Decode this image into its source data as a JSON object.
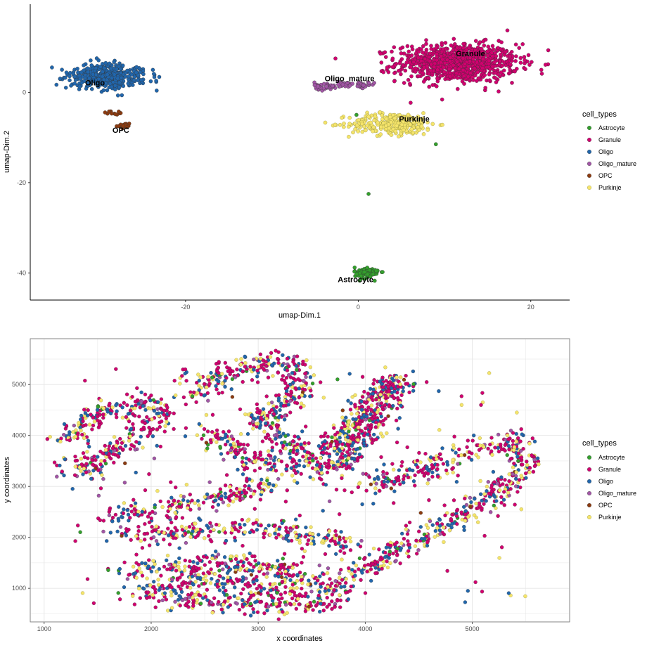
{
  "colors": {
    "Astrocyte": "#33a02c",
    "Granule": "#d1006f",
    "Oligo": "#2166ac",
    "Oligo_mature": "#a256a6",
    "OPC": "#8c3b10",
    "Purkinje": "#f5e46b",
    "grid": "#e5e5e5",
    "axis": "#000000"
  },
  "chart_data": [
    {
      "type": "scatter",
      "xlabel": "umap-Dim.1",
      "ylabel": "umap-Dim.2",
      "xlim": [
        -38,
        24.5
      ],
      "ylim": [
        -46,
        19.5
      ],
      "x_ticks": [
        -20,
        0,
        20
      ],
      "y_ticks": [
        0,
        -20,
        -40
      ],
      "grid": false,
      "legend_title": "cell_types",
      "legend_position": "right",
      "legend_entries": [
        "Astrocyte",
        "Granule",
        "Oligo",
        "Oligo_mature",
        "OPC",
        "Purkinje"
      ],
      "cluster_labels": [
        {
          "text": "Oligo",
          "x": -30.5,
          "y": 1.5
        },
        {
          "text": "OPC",
          "x": -27.5,
          "y": -9
        },
        {
          "text": "Oligo_mature",
          "x": -1.0,
          "y": 2.5
        },
        {
          "text": "Granule",
          "x": 13.0,
          "y": 8.0
        },
        {
          "text": "Purkinje",
          "x": 6.5,
          "y": -6.5
        },
        {
          "text": "Astrocyte",
          "x": -0.3,
          "y": -42
        }
      ],
      "clusters": [
        {
          "cell_type": "Granule",
          "center": [
            11.5,
            6.5
          ],
          "spread": [
            7.0,
            4.2
          ],
          "count": 900
        },
        {
          "cell_type": "Purkinje",
          "center": [
            4.0,
            -7.0
          ],
          "spread": [
            5.0,
            2.4
          ],
          "count": 300
        },
        {
          "cell_type": "Oligo_mature",
          "center": [
            -3.0,
            2.0
          ],
          "spread": [
            3.2,
            0.9
          ],
          "count": 90
        },
        {
          "cell_type": "Oligo",
          "center": [
            -29.0,
            3.5
          ],
          "spread": [
            4.5,
            2.8
          ],
          "count": 420
        },
        {
          "cell_type": "OPC",
          "center": [
            -26.8,
            -7.5
          ],
          "spread": [
            0.8,
            0.6
          ],
          "count": 30
        },
        {
          "cell_type": "Astrocyte",
          "center": [
            1.0,
            -40.0
          ],
          "spread": [
            1.4,
            1.3
          ],
          "count": 100
        }
      ]
    },
    {
      "type": "scatter",
      "xlabel": "x coordinates",
      "ylabel": "y coordinates",
      "xlim": [
        870,
        5910
      ],
      "ylim": [
        340,
        5900
      ],
      "x_ticks": [
        1000,
        2000,
        3000,
        4000,
        5000
      ],
      "y_ticks": [
        1000,
        2000,
        3000,
        4000,
        5000
      ],
      "grid": true,
      "legend_title": "cell_types",
      "legend_position": "right",
      "legend_entries": [
        "Astrocyte",
        "Granule",
        "Oligo",
        "Oligo_mature",
        "OPC",
        "Purkinje"
      ],
      "tissue_bands": [
        [
          [
            1200,
            3900
          ],
          [
            1500,
            4500
          ],
          [
            2000,
            4650
          ],
          [
            2100,
            4300
          ],
          [
            1700,
            3800
          ],
          [
            1500,
            3350
          ],
          [
            1200,
            3400
          ]
        ],
        [
          [
            2400,
            4800
          ],
          [
            2700,
            5300
          ],
          [
            3300,
            5450
          ],
          [
            3400,
            4900
          ],
          [
            3000,
            4300
          ],
          [
            3400,
            3600
          ],
          [
            3700,
            3700
          ],
          [
            4100,
            4800
          ],
          [
            4300,
            5100
          ],
          [
            4100,
            4500
          ],
          [
            3800,
            3400
          ],
          [
            3300,
            3300
          ],
          [
            2900,
            3600
          ],
          [
            2500,
            4100
          ]
        ],
        [
          [
            4000,
            3000
          ],
          [
            4500,
            3300
          ],
          [
            5000,
            3700
          ],
          [
            5400,
            3900
          ],
          [
            5500,
            3400
          ],
          [
            5200,
            2800
          ],
          [
            4700,
            2200
          ],
          [
            4200,
            1600
          ],
          [
            3900,
            1200
          ]
        ],
        [
          [
            1600,
            2400
          ],
          [
            2200,
            2600
          ],
          [
            2700,
            2800
          ],
          [
            3100,
            3100
          ]
        ],
        [
          [
            1700,
            2000
          ],
          [
            2300,
            2100
          ],
          [
            3000,
            2200
          ],
          [
            3600,
            2000
          ],
          [
            3900,
            1700
          ]
        ],
        [
          [
            1700,
            1300
          ],
          [
            2200,
            1400
          ],
          [
            2800,
            1500
          ],
          [
            3300,
            1300
          ],
          [
            3800,
            1000
          ]
        ],
        [
          [
            1800,
            900
          ],
          [
            2400,
            800
          ],
          [
            3000,
            700
          ],
          [
            3500,
            700
          ],
          [
            3800,
            800
          ]
        ],
        [
          [
            2000,
            1000
          ],
          [
            2500,
            1200
          ],
          [
            3000,
            1000
          ],
          [
            3400,
            900
          ]
        ]
      ],
      "composition": {
        "Granule": 0.48,
        "Oligo": 0.22,
        "Purkinje": 0.2,
        "Oligo_mature": 0.05,
        "Astrocyte": 0.04,
        "OPC": 0.01
      },
      "approx_point_count": 3200
    }
  ]
}
